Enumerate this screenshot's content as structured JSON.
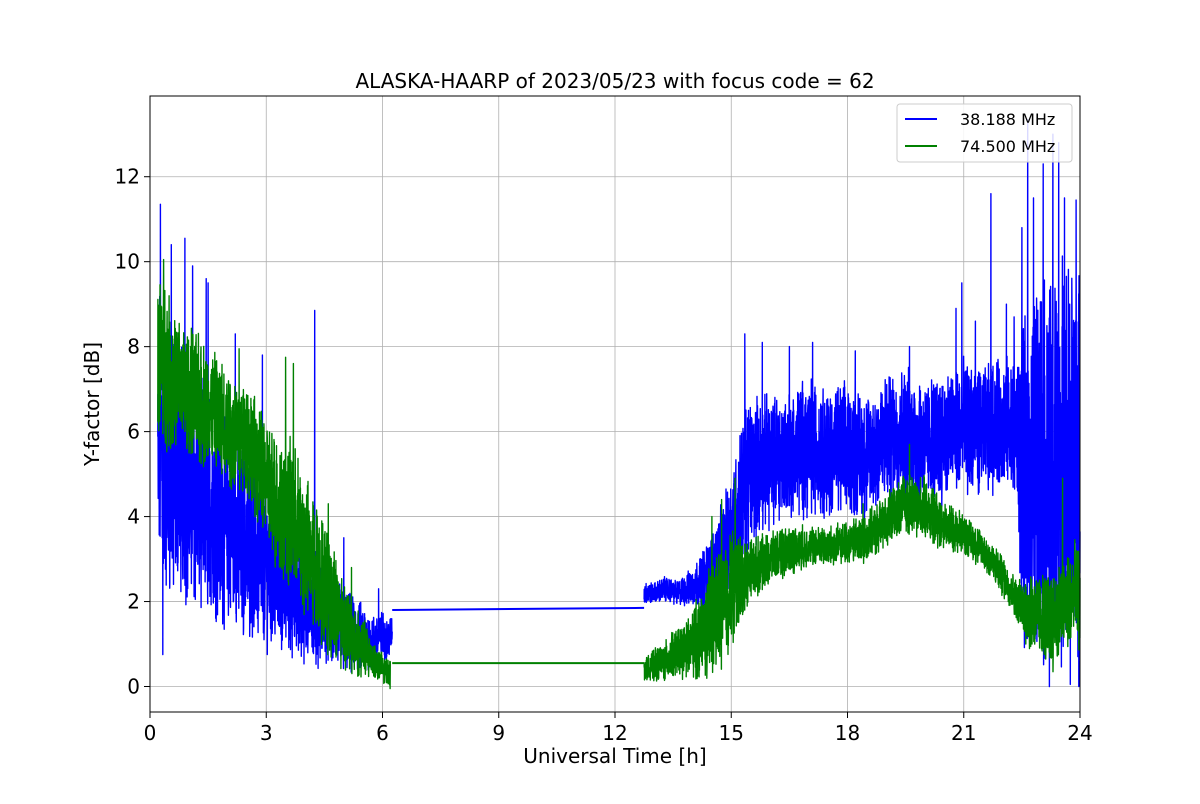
{
  "chart_data": {
    "type": "line",
    "title": "ALASKA-HAARP of 2023/05/23 with focus code = 62",
    "xlabel": "Universal Time [h]",
    "ylabel": "Y-factor [dB]",
    "xlim": [
      0,
      24
    ],
    "ylim": [
      -0.6,
      13.9
    ],
    "xticks": [
      0,
      3,
      6,
      9,
      12,
      15,
      18,
      21,
      24
    ],
    "yticks": [
      0,
      2,
      4,
      6,
      8,
      10,
      12
    ],
    "grid": true,
    "legend_position": "top-right",
    "series": [
      {
        "name": "38.188 MHz",
        "color": "#0000ff",
        "segments": [
          {
            "x": [
              0.2,
              0.25,
              0.3,
              0.35,
              0.4,
              0.5,
              0.6,
              0.7,
              0.8,
              0.9,
              1.0,
              1.2,
              1.4,
              1.6,
              1.8,
              2.0,
              2.2,
              2.4,
              2.6,
              2.8,
              3.0,
              3.2,
              3.4,
              3.6,
              3.8,
              4.0,
              4.2,
              4.25,
              4.3,
              4.4,
              4.6,
              4.8,
              5.0,
              5.2,
              5.4,
              5.6,
              5.8,
              6.0,
              6.1,
              6.2,
              6.25
            ],
            "mean": [
              5.4,
              6.0,
              5.8,
              5.5,
              5.6,
              5.2,
              5.0,
              5.3,
              5.1,
              4.9,
              4.8,
              4.5,
              4.3,
              4.4,
              4.0,
              3.8,
              3.6,
              3.4,
              3.3,
              3.0,
              2.8,
              2.7,
              2.5,
              2.4,
              2.2,
              2.1,
              2.0,
              2.0,
              1.8,
              1.7,
              1.6,
              1.5,
              1.3,
              1.2,
              1.2,
              1.1,
              1.1,
              1.2,
              1.1,
              1.2,
              1.3
            ],
            "amp": [
              2.5,
              3.0,
              3.2,
              2.8,
              2.9,
              2.8,
              2.7,
              2.6,
              2.6,
              2.5,
              2.4,
              2.3,
              2.3,
              2.2,
              2.1,
              2.0,
              1.9,
              1.9,
              1.8,
              1.7,
              1.6,
              1.5,
              1.5,
              1.4,
              1.3,
              1.3,
              1.2,
              1.2,
              1.1,
              1.0,
              0.9,
              0.9,
              0.9,
              0.8,
              0.7,
              0.6,
              0.5,
              0.5,
              0.4,
              0.4,
              0.4
            ],
            "spikes": [
              [
                0.27,
                11.35
              ],
              [
                0.33,
                0.75
              ],
              [
                0.55,
                10.4
              ],
              [
                0.9,
                10.55
              ],
              [
                1.1,
                9.9
              ],
              [
                1.45,
                9.6
              ],
              [
                1.5,
                9.5
              ],
              [
                2.2,
                8.3
              ],
              [
                2.9,
                7.8
              ],
              [
                4.25,
                8.85
              ],
              [
                5.0,
                3.5
              ],
              [
                5.9,
                2.3
              ]
            ]
          },
          {
            "x": [
              6.25,
              12.75
            ],
            "y": [
              1.8,
              1.85
            ]
          },
          {
            "x": [
              12.75,
              13.0,
              13.3,
              13.6,
              13.9,
              14.2,
              14.5,
              14.8,
              15.0,
              15.2,
              15.4,
              15.7,
              16.0,
              16.3,
              16.6,
              17.0,
              17.5,
              18.0,
              18.5,
              19.0,
              19.5,
              20.0,
              20.5,
              21.0,
              21.5,
              22.0,
              22.4,
              22.5,
              22.7,
              23.0,
              23.3,
              23.6,
              23.9,
              24.0
            ],
            "mean": [
              2.2,
              2.2,
              2.3,
              2.2,
              2.3,
              2.5,
              2.7,
              3.2,
              3.6,
              4.2,
              4.9,
              5.2,
              5.3,
              5.4,
              5.5,
              5.7,
              5.5,
              5.6,
              5.4,
              5.8,
              6.0,
              5.7,
              5.9,
              6.1,
              6.0,
              6.2,
              6.0,
              4.5,
              5.0,
              5.2,
              4.8,
              5.5,
              5.0,
              5.0
            ],
            "amp": [
              0.25,
              0.2,
              0.25,
              0.25,
              0.35,
              0.5,
              0.8,
              1.0,
              1.3,
              1.5,
              1.6,
              1.4,
              1.3,
              1.3,
              1.3,
              1.4,
              1.3,
              1.3,
              1.3,
              1.3,
              1.3,
              1.3,
              1.3,
              1.3,
              1.3,
              1.3,
              1.5,
              3.0,
              3.5,
              4.0,
              4.0,
              4.0,
              4.0,
              4.0
            ],
            "spikes": [
              [
                15.35,
                8.3
              ],
              [
                15.8,
                8.1
              ],
              [
                16.5,
                8.0
              ],
              [
                17.1,
                8.1
              ],
              [
                18.2,
                7.9
              ],
              [
                19.6,
                8.0
              ],
              [
                20.8,
                8.9
              ],
              [
                20.95,
                9.5
              ],
              [
                21.3,
                8.6
              ],
              [
                21.7,
                11.6
              ],
              [
                22.1,
                9.0
              ],
              [
                22.3,
                8.7
              ],
              [
                22.5,
                10.8
              ],
              [
                22.65,
                13.35
              ],
              [
                22.8,
                11.5
              ],
              [
                23.05,
                12.3
              ],
              [
                23.3,
                13.0
              ],
              [
                23.45,
                12.8
              ],
              [
                23.6,
                11.5
              ],
              [
                23.75,
                0.05
              ],
              [
                23.9,
                11.45
              ],
              [
                23.97,
                0.0
              ]
            ]
          }
        ]
      },
      {
        "name": "74.500 MHz",
        "color": "#008000",
        "segments": [
          {
            "x": [
              0.2,
              0.3,
              0.4,
              0.6,
              0.8,
              1.0,
              1.3,
              1.6,
              1.9,
              2.2,
              2.5,
              2.8,
              3.1,
              3.4,
              3.7,
              4.0,
              4.3,
              4.6,
              4.9,
              5.2,
              5.5,
              5.8,
              6.0,
              6.2
            ],
            "mean": [
              7.5,
              8.0,
              7.6,
              7.2,
              7.1,
              6.9,
              6.7,
              6.5,
              6.2,
              5.9,
              5.9,
              5.2,
              4.6,
              4.2,
              3.9,
              3.3,
              2.8,
              2.2,
              1.7,
              1.2,
              0.9,
              0.6,
              0.4,
              0.3
            ],
            "amp": [
              1.5,
              1.8,
              1.6,
              1.4,
              1.3,
              1.3,
              1.3,
              1.2,
              1.2,
              1.2,
              1.1,
              1.2,
              1.3,
              1.4,
              1.5,
              1.4,
              1.3,
              1.2,
              1.0,
              0.8,
              0.6,
              0.4,
              0.3,
              0.3
            ],
            "spikes": [
              [
                0.35,
                10.05
              ],
              [
                2.3,
                7.95
              ],
              [
                3.5,
                7.75
              ],
              [
                3.7,
                7.6
              ],
              [
                4.6,
                4.3
              ],
              [
                5.2,
                2.8
              ]
            ]
          },
          {
            "x": [
              6.25,
              12.75
            ],
            "y": [
              0.55,
              0.55
            ]
          },
          {
            "x": [
              12.75,
              13.0,
              13.3,
              13.6,
              13.9,
              14.2,
              14.5,
              14.8,
              15.0,
              15.3,
              15.6,
              16.0,
              16.5,
              17.0,
              17.5,
              18.0,
              18.5,
              19.0,
              19.5,
              20.0,
              20.5,
              21.0,
              21.5,
              22.0,
              22.4,
              22.7,
              23.0,
              23.3,
              23.6,
              23.9,
              24.0
            ],
            "mean": [
              0.4,
              0.5,
              0.6,
              0.8,
              0.9,
              1.2,
              1.6,
              2.0,
              2.3,
              2.6,
              2.8,
              3.0,
              3.2,
              3.3,
              3.3,
              3.4,
              3.5,
              3.9,
              4.3,
              4.2,
              3.8,
              3.6,
              3.2,
              2.6,
              2.0,
              1.8,
              1.6,
              1.6,
              1.9,
              2.2,
              2.0
            ],
            "amp": [
              0.2,
              0.3,
              0.4,
              0.5,
              0.6,
              0.9,
              1.1,
              1.2,
              1.2,
              0.8,
              0.6,
              0.5,
              0.5,
              0.4,
              0.4,
              0.4,
              0.5,
              0.5,
              0.6,
              0.6,
              0.5,
              0.4,
              0.4,
              0.4,
              0.4,
              0.8,
              0.9,
              1.0,
              1.0,
              1.0,
              1.0
            ],
            "spikes": [
              [
                14.5,
                4.0
              ],
              [
                14.75,
                4.4
              ],
              [
                15.1,
                4.9
              ],
              [
                18.4,
                4.3
              ],
              [
                19.6,
                5.7
              ],
              [
                22.6,
                1.0
              ],
              [
                23.55,
                4.9
              ]
            ]
          }
        ]
      }
    ]
  }
}
